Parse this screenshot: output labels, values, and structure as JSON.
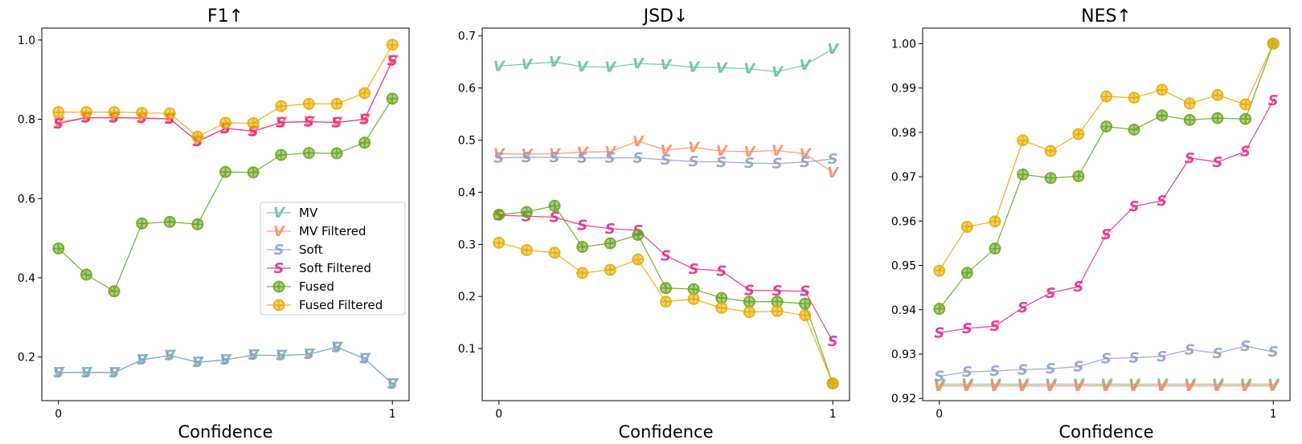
{
  "chart_data": [
    {
      "type": "line",
      "title": "F1↑",
      "xlabel": "Confidence",
      "ylabel": "",
      "ylim": [
        0.09,
        1.03
      ],
      "xlim": [
        -0.05,
        1.05
      ],
      "xticks": [
        0,
        1
      ],
      "yticks": [
        0.2,
        0.4,
        0.6,
        0.8,
        1.0
      ],
      "ytick_labels": [
        "0.2",
        "0.4",
        "0.6",
        "0.8",
        "1.0"
      ],
      "legend": "center-right",
      "x": [
        0,
        0.0833,
        0.1667,
        0.25,
        0.3333,
        0.4167,
        0.5,
        0.5833,
        0.6667,
        0.75,
        0.8333,
        0.9167,
        1.0
      ],
      "series": [
        {
          "name": "MV",
          "marker": "V",
          "color": "#66c2a5",
          "values": [
            0.161,
            0.161,
            0.161,
            0.193,
            0.204,
            0.187,
            0.193,
            0.205,
            0.204,
            0.207,
            0.225,
            0.196,
            0.133
          ]
        },
        {
          "name": "MV Filtered",
          "marker": "V",
          "color": "#fc8d62",
          "values": [
            0.793,
            0.804,
            0.804,
            0.803,
            0.801,
            0.744,
            0.777,
            0.77,
            0.792,
            0.794,
            0.792,
            0.8,
            0.948
          ]
        },
        {
          "name": "Soft",
          "marker": "S",
          "color": "#8da0cb",
          "values": [
            0.161,
            0.161,
            0.161,
            0.193,
            0.204,
            0.187,
            0.193,
            0.205,
            0.204,
            0.207,
            0.225,
            0.196,
            0.133
          ]
        },
        {
          "name": "Soft Filtered",
          "marker": "S",
          "color": "#e7298a",
          "values": [
            0.789,
            0.804,
            0.804,
            0.803,
            0.801,
            0.744,
            0.777,
            0.77,
            0.792,
            0.794,
            0.792,
            0.8,
            0.948
          ]
        },
        {
          "name": "Fused",
          "marker": "O",
          "color": "#66a61e",
          "values": [
            0.474,
            0.408,
            0.366,
            0.537,
            0.541,
            0.535,
            0.667,
            0.666,
            0.71,
            0.715,
            0.714,
            0.741,
            0.852
          ]
        },
        {
          "name": "Fused Filtered",
          "marker": "O",
          "color": "#e6ab02",
          "values": [
            0.818,
            0.818,
            0.818,
            0.816,
            0.815,
            0.756,
            0.791,
            0.79,
            0.833,
            0.839,
            0.839,
            0.866,
            0.988
          ]
        }
      ]
    },
    {
      "type": "line",
      "title": "JSD↓",
      "xlabel": "Confidence",
      "ylabel": "",
      "ylim": [
        0.0,
        0.715
      ],
      "xlim": [
        -0.05,
        1.05
      ],
      "xticks": [
        0,
        1
      ],
      "yticks": [
        0.1,
        0.2,
        0.3,
        0.4,
        0.5,
        0.6,
        0.7
      ],
      "ytick_labels": [
        "0.1",
        "0.2",
        "0.3",
        "0.4",
        "0.5",
        "0.6",
        "0.7"
      ],
      "legend": "none",
      "x": [
        0,
        0.0833,
        0.1667,
        0.25,
        0.3333,
        0.4167,
        0.5,
        0.5833,
        0.6667,
        0.75,
        0.8333,
        0.9167,
        1.0
      ],
      "series": [
        {
          "name": "MV",
          "marker": "V",
          "color": "#66c2a5",
          "values": [
            0.642,
            0.646,
            0.65,
            0.641,
            0.64,
            0.647,
            0.645,
            0.64,
            0.639,
            0.637,
            0.631,
            0.644,
            0.675
          ]
        },
        {
          "name": "MV Filtered",
          "marker": "V",
          "color": "#fc8d62",
          "values": [
            0.474,
            0.473,
            0.474,
            0.477,
            0.478,
            0.498,
            0.481,
            0.486,
            0.479,
            0.478,
            0.48,
            0.474,
            0.438
          ]
        },
        {
          "name": "Soft",
          "marker": "S",
          "color": "#8da0cb",
          "values": [
            0.466,
            0.467,
            0.467,
            0.466,
            0.466,
            0.466,
            0.462,
            0.459,
            0.458,
            0.456,
            0.455,
            0.458,
            0.464
          ]
        },
        {
          "name": "Soft Filtered",
          "marker": "S",
          "color": "#e7298a",
          "values": [
            0.356,
            0.354,
            0.352,
            0.337,
            0.33,
            0.327,
            0.278,
            0.253,
            0.249,
            0.212,
            0.211,
            0.21,
            0.114
          ]
        },
        {
          "name": "Fused",
          "marker": "O",
          "color": "#66a61e",
          "values": [
            0.357,
            0.362,
            0.374,
            0.295,
            0.302,
            0.318,
            0.216,
            0.214,
            0.197,
            0.19,
            0.19,
            0.186,
            0.033
          ]
        },
        {
          "name": "Fused Filtered",
          "marker": "O",
          "color": "#e6ab02",
          "values": [
            0.303,
            0.289,
            0.284,
            0.245,
            0.251,
            0.271,
            0.19,
            0.195,
            0.178,
            0.17,
            0.172,
            0.164,
            0.033
          ]
        }
      ]
    },
    {
      "type": "line",
      "title": "NES↑",
      "xlabel": "Confidence",
      "ylabel": "",
      "ylim": [
        0.9195,
        1.0035
      ],
      "xlim": [
        -0.05,
        1.05
      ],
      "xticks": [
        0,
        1
      ],
      "yticks": [
        0.92,
        0.93,
        0.94,
        0.95,
        0.96,
        0.97,
        0.98,
        0.99,
        1.0
      ],
      "ytick_labels": [
        "0.92",
        "0.93",
        "0.94",
        "0.95",
        "0.96",
        "0.97",
        "0.98",
        "0.99",
        "1.00"
      ],
      "legend": "none",
      "x": [
        0,
        0.0833,
        0.1667,
        0.25,
        0.3333,
        0.4167,
        0.5,
        0.5833,
        0.6667,
        0.75,
        0.8333,
        0.9167,
        1.0
      ],
      "series": [
        {
          "name": "MV",
          "marker": "V",
          "color": "#66c2a5",
          "values": [
            0.9232,
            0.9232,
            0.9232,
            0.9232,
            0.9232,
            0.9232,
            0.9232,
            0.9232,
            0.9232,
            0.9232,
            0.9232,
            0.9232,
            0.9232
          ]
        },
        {
          "name": "MV Filtered",
          "marker": "V",
          "color": "#fc8d62",
          "values": [
            0.9228,
            0.9228,
            0.9228,
            0.9228,
            0.9228,
            0.9228,
            0.9228,
            0.9228,
            0.9228,
            0.9228,
            0.9228,
            0.9228,
            0.9228
          ]
        },
        {
          "name": "Soft",
          "marker": "S",
          "color": "#8da0cb",
          "values": [
            0.925,
            0.926,
            0.9262,
            0.9265,
            0.9267,
            0.9272,
            0.929,
            0.9292,
            0.9295,
            0.931,
            0.9302,
            0.9318,
            0.9305
          ]
        },
        {
          "name": "Soft Filtered",
          "marker": "S",
          "color": "#e7298a",
          "values": [
            0.9348,
            0.9358,
            0.9363,
            0.9405,
            0.9438,
            0.9452,
            0.957,
            0.9633,
            0.9646,
            0.9742,
            0.9733,
            0.9757,
            0.9872
          ]
        },
        {
          "name": "Fused",
          "marker": "O",
          "color": "#66a61e",
          "values": [
            0.9402,
            0.9483,
            0.9538,
            0.9705,
            0.9697,
            0.9701,
            0.9813,
            0.9806,
            0.9838,
            0.9828,
            0.9832,
            0.983,
            1.0
          ]
        },
        {
          "name": "Fused Filtered",
          "marker": "O",
          "color": "#e6ab02",
          "values": [
            0.9488,
            0.9587,
            0.9599,
            0.9782,
            0.9758,
            0.9796,
            0.9881,
            0.9878,
            0.9896,
            0.9865,
            0.9884,
            0.9863,
            1.0
          ]
        }
      ]
    }
  ]
}
